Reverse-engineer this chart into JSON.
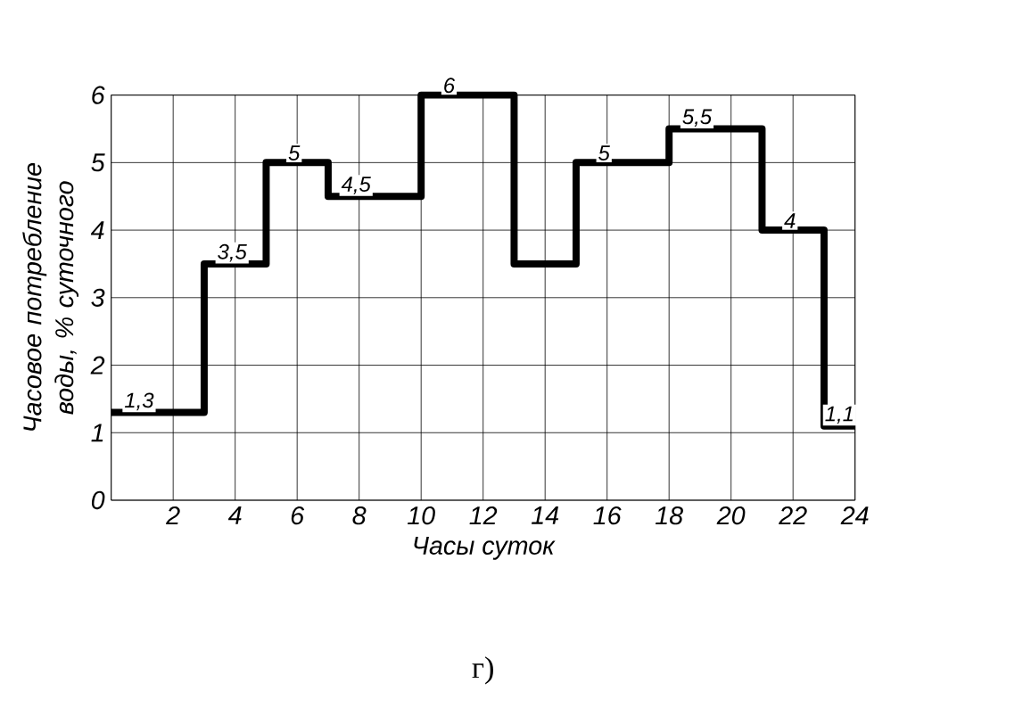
{
  "chart_data": {
    "type": "step",
    "xlabel": "Часы суток",
    "ylabel": "Часовое потребление воды, % суточного",
    "x": [
      0,
      3,
      5,
      7,
      10,
      13,
      15,
      18,
      21,
      23,
      24
    ],
    "values": [
      1.3,
      3.5,
      5,
      4.5,
      6,
      3.5,
      5,
      5.5,
      4,
      1.1,
      1.1
    ],
    "value_labels": [
      "1,3",
      "3,5",
      "5",
      "4,5",
      "6",
      null,
      "5",
      "5,5",
      "4",
      "1,1",
      null
    ],
    "color": "#000000",
    "xlim": [
      0,
      24
    ],
    "xticks": [
      {
        "value": 0,
        "label": null
      },
      2,
      4,
      6,
      8,
      10,
      12,
      14,
      16,
      18,
      20,
      22,
      24
    ],
    "ylim": [
      0,
      6
    ],
    "yticks": [
      0,
      1,
      2,
      3,
      4,
      5,
      6
    ],
    "grid": true,
    "annotations": [
      "г)"
    ]
  }
}
